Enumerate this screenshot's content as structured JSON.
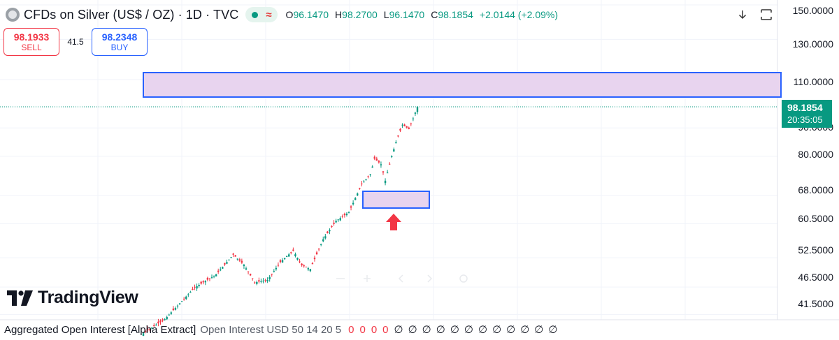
{
  "header": {
    "title": "CFDs on Silver (US$ / OZ) · 1D · TVC",
    "live_icon": "wave-icon",
    "open_key": "O",
    "open_val": "96.1470",
    "high_key": "H",
    "high_val": "98.2700",
    "low_key": "L",
    "low_val": "96.1470",
    "close_key": "C",
    "close_val": "98.1854",
    "change": "+2.0144 (+2.09%)"
  },
  "trade": {
    "sell_price": "98.1933",
    "sell_label": "SELL",
    "spread": "41.5",
    "buy_price": "98.2348",
    "buy_label": "BUY"
  },
  "toolbar": {
    "download_icon": "arrow-down-icon",
    "fullscreen_icon": "fullscreen-icon"
  },
  "price_axis": {
    "labels": [
      "150.0000",
      "130.0000",
      "110.0000",
      "90.0000",
      "80.0000",
      "68.0000",
      "60.5000",
      "52.5000",
      "46.5000",
      "41.5000"
    ],
    "current_price": "98.1854",
    "countdown": "20:35:05"
  },
  "colors": {
    "up": "#089981",
    "down": "#f23645",
    "zone_fill": "#e8d4ef",
    "zone_border": "#2962ff",
    "arrow": "#f23645"
  },
  "chart_data": {
    "type": "candlestick",
    "y_scale": "log",
    "y_ticks": [
      150,
      130,
      110,
      90,
      80,
      68,
      60.5,
      52.5,
      46.5,
      41.5
    ],
    "last_close": 98.1854,
    "annotations": [
      {
        "type": "zone",
        "from": 98.7,
        "to": 112.5
      },
      {
        "type": "zone",
        "from": 64.5,
        "to": 69.7
      },
      {
        "type": "arrow",
        "direction": "up",
        "target": "lower-zone"
      }
    ],
    "waypoints": [
      {
        "bar": 0,
        "price": 38.4
      },
      {
        "bar": 10,
        "price": 40.7
      },
      {
        "bar": 24,
        "price": 46.4
      },
      {
        "bar": 34,
        "price": 49.0
      },
      {
        "bar": 42,
        "price": 53.2
      },
      {
        "bar": 47,
        "price": 51.0
      },
      {
        "bar": 52,
        "price": 47.4
      },
      {
        "bar": 58,
        "price": 47.9
      },
      {
        "bar": 64,
        "price": 51.6
      },
      {
        "bar": 70,
        "price": 54.1
      },
      {
        "bar": 74,
        "price": 50.9
      },
      {
        "bar": 78,
        "price": 50.1
      },
      {
        "bar": 84,
        "price": 56.7
      },
      {
        "bar": 90,
        "price": 61.2
      },
      {
        "bar": 96,
        "price": 63.4
      },
      {
        "bar": 102,
        "price": 71.3
      },
      {
        "bar": 106,
        "price": 74.2
      },
      {
        "bar": 108,
        "price": 79.2
      },
      {
        "bar": 111,
        "price": 77.4
      },
      {
        "bar": 113,
        "price": 72.3
      },
      {
        "bar": 116,
        "price": 80.0
      },
      {
        "bar": 118,
        "price": 84.8
      },
      {
        "bar": 121,
        "price": 91.2
      },
      {
        "bar": 124,
        "price": 89.6
      },
      {
        "bar": 126,
        "price": 93.6
      },
      {
        "bar": 128,
        "price": 98.1854
      }
    ]
  },
  "watermark": {
    "brand": "TradingView",
    "logo_icon": "tradingview-logo-icon"
  },
  "indicator": {
    "name": "Aggregated Open Interest [Alpha Extract]",
    "params": "Open Interest USD 50 14 20 5",
    "zeros": [
      "0",
      "0",
      "0",
      "0"
    ],
    "nulls": [
      "∅",
      "∅",
      "∅",
      "∅",
      "∅",
      "∅",
      "∅",
      "∅",
      "∅",
      "∅",
      "∅",
      "∅"
    ]
  }
}
